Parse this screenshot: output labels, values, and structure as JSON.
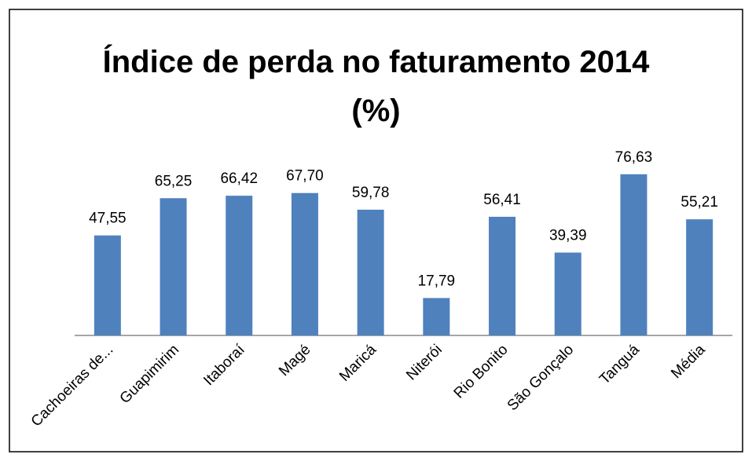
{
  "chart_data": {
    "type": "bar",
    "title": "Índice de perda no faturamento 2014\n(%)",
    "categories": [
      "Cachoeiras de...",
      "Guapimirim",
      "Itaboraí",
      "Magé",
      "Maricá",
      "Niterói",
      "Rio Bonito",
      "São Gonçalo",
      "Tanguá",
      "Média"
    ],
    "values": [
      47.55,
      65.25,
      66.42,
      67.7,
      59.78,
      17.79,
      56.41,
      39.39,
      76.63,
      55.21
    ],
    "value_labels": [
      "47,55",
      "65,25",
      "66,42",
      "67,70",
      "59,78",
      "17,79",
      "56,41",
      "39,39",
      "76,63",
      "55,21"
    ],
    "color": "#4f81bd",
    "ylim": [
      0,
      90
    ]
  }
}
